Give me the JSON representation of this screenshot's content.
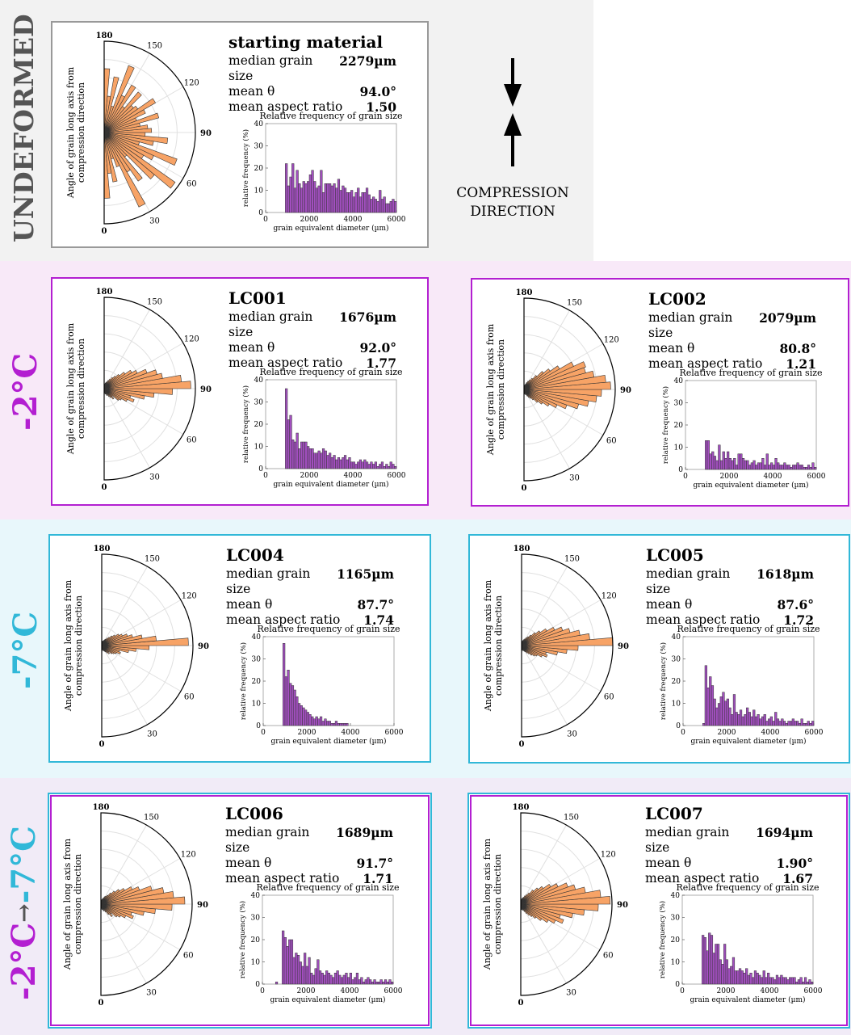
{
  "colors": {
    "rose_fill": "#f7a366",
    "hist_fill": "#a24fbf",
    "warm_band": "#f8e9f8",
    "cold_band": "#e8f7fb",
    "mixed_band": "#f1ebf7",
    "undeformed_band": "#f2f2f2",
    "magenta": "#b31fd1",
    "cyan": "#31b8d8",
    "grey": "#555555"
  },
  "bands": {
    "undeformed": "UNDEFORMED",
    "warm": "-2°C",
    "cold": "-7°C",
    "mixed_a": "-2°C",
    "mixed_arrow": "→",
    "mixed_b": "-7°C"
  },
  "compression": {
    "line1": "COMPRESSION",
    "line2": "DIRECTION"
  },
  "common": {
    "rose_ylabel_1": "Angle of grain long axis from",
    "rose_ylabel_2": "compression direction",
    "rose_ticks": [
      "180",
      "150",
      "120",
      "90",
      "60",
      "30",
      "0"
    ],
    "hist_title": "Relative frequency of grain size",
    "hist_ylabel": "relative frequency (%)",
    "hist_xlabel": "grain equivalent diameter (µm)",
    "stat_labels": [
      "median grain size",
      "mean θ",
      "mean aspect ratio"
    ]
  },
  "panels": [
    {
      "id": "starting",
      "title": "starting material",
      "median": "2279µm",
      "theta": "94.0°",
      "aspect": "1.50"
    },
    {
      "id": "LC001",
      "title": "LC001",
      "median": "1676µm",
      "theta": "92.0°",
      "aspect": "1.77"
    },
    {
      "id": "LC002",
      "title": "LC002",
      "median": "2079µm",
      "theta": "80.8°",
      "aspect": "1.21"
    },
    {
      "id": "LC004",
      "title": "LC004",
      "median": "1165µm",
      "theta": "87.7°",
      "aspect": "1.74"
    },
    {
      "id": "LC005",
      "title": "LC005",
      "median": "1618µm",
      "theta": "87.6°",
      "aspect": "1.72"
    },
    {
      "id": "LC006",
      "title": "LC006",
      "median": "1689µm",
      "theta": "91.7°",
      "aspect": "1.71"
    },
    {
      "id": "LC007",
      "title": "LC007",
      "median": "1694µm",
      "theta": "1.90°",
      "aspect": "1.67"
    }
  ],
  "chart_data": [
    {
      "panel": "starting",
      "rose": {
        "type": "polar-histogram",
        "theta_range": [
          0,
          180
        ],
        "bin_width_deg": 5,
        "ticks_deg": [
          0,
          30,
          60,
          90,
          120,
          150,
          180
        ],
        "radii": [
          0.72,
          0.45,
          0.55,
          0.3,
          0.4,
          0.9,
          0.5,
          0.65,
          0.35,
          0.72,
          0.95,
          0.5,
          0.6,
          0.85,
          0.4,
          0.55,
          0.7,
          0.45,
          0.52,
          0.48,
          0.4,
          0.62,
          0.38,
          0.5,
          0.65,
          0.45,
          0.42,
          0.58,
          0.35,
          0.6,
          0.45,
          0.78,
          0.3,
          0.62,
          0.4,
          0.7
        ]
      },
      "hist": {
        "type": "bar",
        "bin_width_um": 100,
        "x_start_um": 900,
        "ylim": [
          0,
          40
        ],
        "xlim": [
          0,
          6000
        ],
        "xticks": [
          0,
          2000,
          4000,
          6000
        ],
        "yticks": [
          0,
          10,
          20,
          30,
          40
        ],
        "values": [
          22,
          12,
          16,
          22,
          11,
          19,
          13,
          11,
          14,
          13,
          14,
          17,
          19,
          14,
          11,
          12,
          19,
          9,
          13,
          13,
          13,
          12,
          13,
          11,
          15,
          10,
          12,
          11,
          9,
          9,
          10,
          7,
          9,
          11,
          7,
          9,
          9,
          11,
          8,
          6,
          7,
          6,
          5,
          10,
          6,
          7,
          4,
          4,
          5,
          6,
          5,
          4,
          3,
          7,
          5,
          6,
          3,
          4,
          3,
          2,
          3,
          2,
          3,
          2,
          2,
          1,
          2,
          2,
          1,
          1,
          2,
          1,
          2,
          1,
          1,
          1,
          1,
          1,
          1,
          1,
          1,
          1
        ]
      }
    },
    {
      "panel": "LC001",
      "rose": {
        "type": "polar-histogram",
        "theta_range": [
          0,
          180
        ],
        "bin_width_deg": 5,
        "ticks_deg": [
          0,
          30,
          60,
          90,
          120,
          150,
          180
        ],
        "radii": [
          0.05,
          0.04,
          0.06,
          0.05,
          0.08,
          0.06,
          0.1,
          0.12,
          0.15,
          0.12,
          0.2,
          0.22,
          0.28,
          0.35,
          0.3,
          0.45,
          0.55,
          0.75,
          0.95,
          0.85,
          0.65,
          0.6,
          0.5,
          0.4,
          0.35,
          0.28,
          0.22,
          0.18,
          0.15,
          0.12,
          0.1,
          0.08,
          0.07,
          0.06,
          0.05,
          0.04
        ]
      },
      "hist": {
        "type": "bar",
        "bin_width_um": 100,
        "x_start_um": 900,
        "ylim": [
          0,
          40
        ],
        "xlim": [
          0,
          6000
        ],
        "xticks": [
          0,
          2000,
          4000,
          6000
        ],
        "yticks": [
          0,
          10,
          20,
          30,
          40
        ],
        "values": [
          36,
          22,
          24,
          13,
          12,
          16,
          9,
          12,
          12,
          12,
          10,
          9,
          9,
          7,
          7,
          8,
          7,
          9,
          8,
          6,
          7,
          5,
          6,
          4,
          5,
          4,
          5,
          6,
          4,
          5,
          3,
          3,
          2,
          3,
          4,
          3,
          4,
          3,
          2,
          3,
          2,
          3,
          1,
          2,
          3,
          1,
          2,
          1,
          3,
          2,
          1,
          2,
          1,
          1,
          2,
          1,
          2,
          1,
          1,
          1,
          1,
          2
        ]
      }
    },
    {
      "panel": "LC002",
      "rose": {
        "type": "polar-histogram",
        "theta_range": [
          0,
          180
        ],
        "bin_width_deg": 5,
        "ticks_deg": [
          0,
          30,
          60,
          90,
          120,
          150,
          180
        ],
        "radii": [
          0.04,
          0.05,
          0.04,
          0.06,
          0.05,
          0.08,
          0.1,
          0.12,
          0.15,
          0.2,
          0.25,
          0.32,
          0.4,
          0.5,
          0.62,
          0.72,
          0.8,
          0.85,
          0.95,
          0.9,
          0.78,
          0.7,
          0.72,
          0.6,
          0.45,
          0.35,
          0.28,
          0.2,
          0.15,
          0.12,
          0.1,
          0.08,
          0.06,
          0.05,
          0.04,
          0.03
        ]
      },
      "hist": {
        "type": "bar",
        "bin_width_um": 100,
        "x_start_um": 900,
        "ylim": [
          0,
          40
        ],
        "xlim": [
          0,
          6000
        ],
        "xticks": [
          0,
          2000,
          4000,
          6000
        ],
        "yticks": [
          0,
          10,
          20,
          30,
          40
        ],
        "values": [
          13,
          13,
          7,
          8,
          6,
          4,
          11,
          4,
          8,
          5,
          8,
          5,
          4,
          5,
          2,
          7,
          7,
          5,
          4,
          4,
          2,
          3,
          4,
          2,
          3,
          3,
          5,
          2,
          7,
          2,
          3,
          2,
          5,
          3,
          2,
          2,
          3,
          2,
          2,
          1,
          2,
          2,
          3,
          2,
          2,
          1,
          1,
          2,
          1,
          3,
          1,
          1,
          1,
          1,
          2,
          1,
          2,
          1,
          1,
          1,
          1,
          1
        ]
      }
    },
    {
      "panel": "LC004",
      "rose": {
        "type": "polar-histogram",
        "theta_range": [
          0,
          180
        ],
        "bin_width_deg": 5,
        "ticks_deg": [
          0,
          30,
          60,
          90,
          120,
          150,
          180
        ],
        "radii": [
          0.04,
          0.04,
          0.05,
          0.06,
          0.05,
          0.07,
          0.08,
          0.1,
          0.12,
          0.1,
          0.14,
          0.16,
          0.18,
          0.22,
          0.2,
          0.3,
          0.38,
          0.52,
          0.95,
          0.6,
          0.45,
          0.35,
          0.3,
          0.25,
          0.22,
          0.18,
          0.15,
          0.12,
          0.1,
          0.08,
          0.07,
          0.06,
          0.05,
          0.05,
          0.04,
          0.04
        ]
      },
      "hist": {
        "type": "bar",
        "bin_width_um": 100,
        "x_start_um": 900,
        "ylim": [
          0,
          40
        ],
        "xlim": [
          0,
          6000
        ],
        "xticks": [
          0,
          2000,
          4000,
          6000
        ],
        "yticks": [
          0,
          10,
          20,
          30,
          40
        ],
        "values": [
          37,
          22,
          25,
          19,
          18,
          16,
          13,
          10,
          9,
          8,
          7,
          6,
          5,
          4,
          3,
          4,
          3,
          4,
          2,
          3,
          2,
          2,
          1,
          1,
          2,
          1,
          1,
          1,
          1,
          1,
          0,
          0,
          0,
          0,
          0,
          0,
          0,
          0,
          0,
          0,
          0,
          0,
          0,
          0,
          0,
          0,
          0,
          0,
          0,
          0,
          0,
          0
        ]
      }
    },
    {
      "panel": "LC005",
      "rose": {
        "type": "polar-histogram",
        "theta_range": [
          0,
          180
        ],
        "bin_width_deg": 5,
        "ticks_deg": [
          0,
          30,
          60,
          90,
          120,
          150,
          180
        ],
        "radii": [
          0.04,
          0.05,
          0.04,
          0.06,
          0.05,
          0.07,
          0.08,
          0.1,
          0.12,
          0.15,
          0.18,
          0.2,
          0.25,
          0.3,
          0.28,
          0.4,
          0.5,
          0.62,
          1.0,
          0.75,
          0.65,
          0.55,
          0.48,
          0.4,
          0.32,
          0.25,
          0.2,
          0.15,
          0.12,
          0.1,
          0.08,
          0.07,
          0.06,
          0.05,
          0.04,
          0.04
        ]
      },
      "hist": {
        "type": "bar",
        "bin_width_um": 100,
        "x_start_um": 900,
        "ylim": [
          0,
          40
        ],
        "xlim": [
          0,
          6000
        ],
        "xticks": [
          0,
          2000,
          4000,
          6000
        ],
        "yticks": [
          0,
          10,
          20,
          30,
          40
        ],
        "values": [
          1,
          27,
          17,
          22,
          18,
          12,
          8,
          10,
          13,
          15,
          11,
          12,
          8,
          5,
          14,
          6,
          5,
          7,
          4,
          5,
          8,
          6,
          4,
          7,
          4,
          5,
          3,
          4,
          5,
          2,
          3,
          4,
          2,
          6,
          3,
          2,
          3,
          2,
          1,
          2,
          2,
          3,
          2,
          2,
          1,
          3,
          1,
          1,
          2,
          1,
          2,
          1,
          1,
          1,
          1,
          1,
          1,
          3
        ]
      }
    },
    {
      "panel": "LC006",
      "rose": {
        "type": "polar-histogram",
        "theta_range": [
          0,
          180
        ],
        "bin_width_deg": 5,
        "ticks_deg": [
          0,
          30,
          60,
          90,
          120,
          150,
          180
        ],
        "radii": [
          0.05,
          0.04,
          0.06,
          0.05,
          0.08,
          0.06,
          0.1,
          0.14,
          0.18,
          0.15,
          0.22,
          0.25,
          0.3,
          0.38,
          0.35,
          0.48,
          0.6,
          0.78,
          0.92,
          0.8,
          0.7,
          0.58,
          0.45,
          0.38,
          0.3,
          0.25,
          0.2,
          0.16,
          0.12,
          0.1,
          0.09,
          0.07,
          0.06,
          0.05,
          0.04,
          0.04
        ]
      },
      "hist": {
        "type": "bar",
        "bin_width_um": 100,
        "x_start_um": 600,
        "ylim": [
          0,
          40
        ],
        "xlim": [
          0,
          6000
        ],
        "xticks": [
          0,
          2000,
          4000,
          6000
        ],
        "yticks": [
          0,
          10,
          20,
          30,
          40
        ],
        "values": [
          1,
          0,
          0,
          24,
          21,
          17,
          20,
          20,
          12,
          14,
          13,
          10,
          8,
          14,
          8,
          12,
          5,
          4,
          7,
          11,
          6,
          5,
          4,
          6,
          5,
          4,
          3,
          5,
          6,
          4,
          3,
          4,
          5,
          3,
          5,
          2,
          3,
          5,
          2,
          3,
          1,
          2,
          3,
          2,
          1,
          2,
          1,
          1,
          2,
          1,
          2,
          1,
          2,
          1,
          1,
          2,
          1,
          1,
          2
        ]
      }
    },
    {
      "panel": "LC007",
      "rose": {
        "type": "polar-histogram",
        "theta_range": [
          0,
          180
        ],
        "bin_width_deg": 5,
        "ticks_deg": [
          0,
          30,
          60,
          90,
          120,
          150,
          180
        ],
        "radii": [
          0.05,
          0.06,
          0.05,
          0.07,
          0.06,
          0.09,
          0.12,
          0.15,
          0.18,
          0.22,
          0.28,
          0.35,
          0.42,
          0.5,
          0.45,
          0.58,
          0.7,
          0.85,
          0.98,
          0.88,
          0.72,
          0.62,
          0.55,
          0.45,
          0.38,
          0.3,
          0.25,
          0.2,
          0.15,
          0.12,
          0.1,
          0.08,
          0.07,
          0.06,
          0.05,
          0.04
        ]
      },
      "hist": {
        "type": "bar",
        "bin_width_um": 100,
        "x_start_um": 900,
        "ylim": [
          0,
          40
        ],
        "xlim": [
          0,
          6000
        ],
        "xticks": [
          0,
          2000,
          4000,
          6000
        ],
        "yticks": [
          0,
          10,
          20,
          30,
          40
        ],
        "values": [
          22,
          21,
          15,
          23,
          22,
          14,
          18,
          18,
          11,
          9,
          18,
          11,
          7,
          8,
          12,
          6,
          6,
          7,
          6,
          5,
          7,
          4,
          5,
          3,
          6,
          5,
          4,
          3,
          6,
          3,
          5,
          3,
          3,
          2,
          4,
          3,
          4,
          3,
          3,
          2,
          3,
          3,
          3,
          1,
          2,
          3,
          1,
          3,
          1,
          2,
          1,
          1,
          2,
          1,
          1,
          1,
          1,
          1,
          2,
          1,
          1
        ]
      }
    }
  ]
}
